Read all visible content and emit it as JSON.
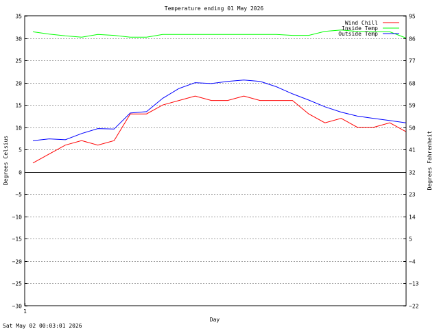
{
  "chart_data": {
    "type": "line",
    "title": "Temperature ending 01 May 2026",
    "xlabel": "Day",
    "ylabel_left": "Degrees Celsius",
    "ylabel_right": "Degrees Fahrenheit",
    "timestamp": "Sat May 02 00:03:01 2026",
    "xlim": [
      0,
      23
    ],
    "ylim": [
      -30,
      35
    ],
    "y_ticks": [
      -30,
      -25,
      -20,
      -15,
      -10,
      -5,
      0,
      5,
      10,
      15,
      20,
      25,
      30,
      35
    ],
    "y_right_ticks": [
      -22,
      -13,
      -4,
      5,
      14,
      23,
      32,
      41,
      50,
      59,
      68,
      77,
      86,
      95
    ],
    "x_ticks": [
      {
        "value": 0,
        "label": "1"
      }
    ],
    "grid": true,
    "legend_position": "top-right",
    "series": [
      {
        "name": "Wind Chill",
        "color": "#ff0000",
        "values": [
          2,
          4,
          6,
          7,
          6,
          7,
          13,
          13,
          15,
          16,
          17,
          16,
          16,
          17,
          16,
          16,
          16,
          13,
          11,
          12,
          10,
          10,
          11,
          9
        ]
      },
      {
        "name": "Inside Temp",
        "color": "#00ff00",
        "values": [
          31.4,
          30.9,
          30.5,
          30.2,
          30.8,
          30.6,
          30.2,
          30.2,
          30.8,
          30.8,
          30.8,
          30.8,
          30.8,
          30.8,
          30.8,
          30.8,
          30.6,
          30.6,
          31.5,
          31.8,
          31.5,
          31.4,
          31.4,
          30
        ]
      },
      {
        "name": "Outside Temp",
        "color": "#0000ff",
        "values": [
          7,
          7.4,
          7.2,
          8.6,
          9.7,
          9.6,
          13.2,
          13.5,
          16.5,
          18.7,
          20,
          19.8,
          20.3,
          20.6,
          20.3,
          19.1,
          17.5,
          16.1,
          14.6,
          13.4,
          12.5,
          12,
          11.5,
          11
        ]
      }
    ]
  }
}
